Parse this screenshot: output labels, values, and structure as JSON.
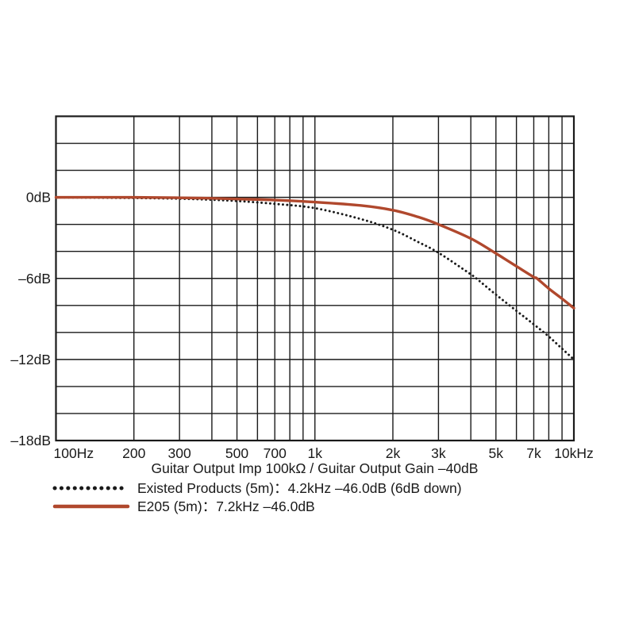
{
  "page": {
    "background": "#ffffff",
    "text_color": "#1a1a1a"
  },
  "chart_data": {
    "type": "line",
    "title": "",
    "caption": "Guitar Output Imp 100kΩ / Guitar Output Gain –40dB",
    "grid": true,
    "grid_color": "#1a1a1a",
    "legend_position": "bottom-left",
    "x_axis": {
      "scale": "log",
      "min": 100,
      "max": 10000,
      "unit": "Hz",
      "gridlines": [
        100,
        200,
        300,
        400,
        500,
        600,
        700,
        800,
        900,
        1000,
        2000,
        3000,
        4000,
        5000,
        6000,
        7000,
        8000,
        9000,
        10000
      ],
      "ticks": [
        {
          "value": 100,
          "label": "100Hz"
        },
        {
          "value": 200,
          "label": "200"
        },
        {
          "value": 300,
          "label": "300"
        },
        {
          "value": 500,
          "label": "500"
        },
        {
          "value": 700,
          "label": "700"
        },
        {
          "value": 1000,
          "label": "1k"
        },
        {
          "value": 2000,
          "label": "2k"
        },
        {
          "value": 3000,
          "label": "3k"
        },
        {
          "value": 5000,
          "label": "5k"
        },
        {
          "value": 7000,
          "label": "7k"
        },
        {
          "value": 10000,
          "label": "10kHz"
        }
      ]
    },
    "y_axis": {
      "min": -18,
      "max": 6,
      "grid_step": 2,
      "unit": "dB",
      "ticks": [
        {
          "value": 0,
          "label": "0dB"
        },
        {
          "value": -6,
          "label": "–6dB"
        },
        {
          "value": -12,
          "label": "–12dB"
        },
        {
          "value": -18,
          "label": "–18dB"
        }
      ]
    },
    "series": [
      {
        "id": "existed-products",
        "legend_label": "Existed Products (5m)：4.2kHz –46.0dB (6dB down)",
        "line_style": "dotted",
        "color": "#1a1a1a",
        "spec_point": {
          "freq_hz": 4200,
          "level_db": -46.0
        },
        "points": [
          [
            100,
            0
          ],
          [
            200,
            -0.05
          ],
          [
            300,
            -0.1
          ],
          [
            400,
            -0.18
          ],
          [
            500,
            -0.27
          ],
          [
            700,
            -0.48
          ],
          [
            1000,
            -0.8
          ],
          [
            1500,
            -1.6
          ],
          [
            2000,
            -2.4
          ],
          [
            2500,
            -3.3
          ],
          [
            3000,
            -4.1
          ],
          [
            4000,
            -5.7
          ],
          [
            4200,
            -6.0
          ],
          [
            5000,
            -7.2
          ],
          [
            6000,
            -8.4
          ],
          [
            7000,
            -9.4
          ],
          [
            8000,
            -10.3
          ],
          [
            9000,
            -11.2
          ],
          [
            10000,
            -12.0
          ]
        ]
      },
      {
        "id": "e205",
        "legend_label": "E205 (5m)：7.2kHz –46.0dB",
        "line_style": "solid",
        "color": "#b0482d",
        "spec_point": {
          "freq_hz": 7200,
          "level_db": -46.0
        },
        "points": [
          [
            100,
            0
          ],
          [
            200,
            0
          ],
          [
            300,
            -0.03
          ],
          [
            400,
            -0.07
          ],
          [
            500,
            -0.12
          ],
          [
            700,
            -0.2
          ],
          [
            1000,
            -0.35
          ],
          [
            1500,
            -0.6
          ],
          [
            2000,
            -0.95
          ],
          [
            2500,
            -1.45
          ],
          [
            3000,
            -2.0
          ],
          [
            4000,
            -3.05
          ],
          [
            5000,
            -4.15
          ],
          [
            6000,
            -5.1
          ],
          [
            7000,
            -5.9
          ],
          [
            7200,
            -6.0
          ],
          [
            8000,
            -6.75
          ],
          [
            9000,
            -7.5
          ],
          [
            10000,
            -8.2
          ]
        ]
      }
    ]
  }
}
